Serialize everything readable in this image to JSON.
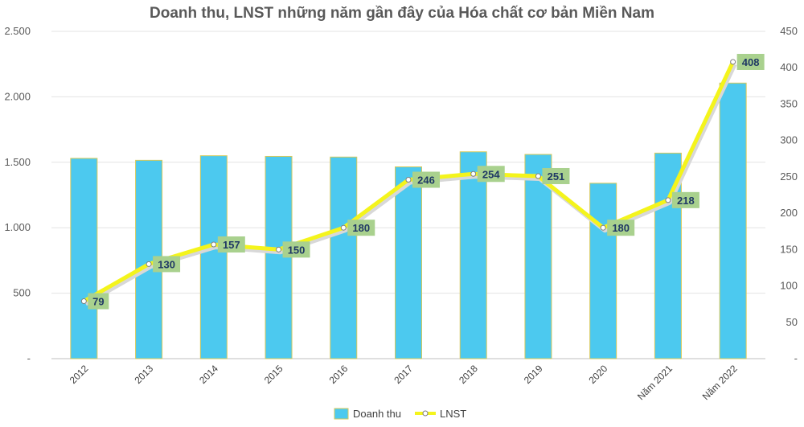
{
  "chart_data": {
    "type": "bar",
    "title": "Doanh thu, LNST những năm gần đây của Hóa chất cơ bản Miền Nam",
    "categories": [
      "2012",
      "2013",
      "2014",
      "2015",
      "2016",
      "2017",
      "2018",
      "2019",
      "2020",
      "Năm 2021",
      "Năm 2022"
    ],
    "series": [
      {
        "name": "Doanh thu",
        "type": "bar",
        "axis": "left",
        "values": [
          1530,
          1515,
          1550,
          1545,
          1540,
          1465,
          1580,
          1560,
          1340,
          1570,
          2105
        ]
      },
      {
        "name": "LNST",
        "type": "line",
        "axis": "right",
        "values": [
          79,
          130,
          157,
          150,
          180,
          246,
          254,
          251,
          180,
          218,
          408
        ],
        "data_labels": [
          "79",
          "130",
          "157",
          "150",
          "180",
          "246",
          "254",
          "251",
          "180",
          "218",
          "408"
        ]
      }
    ],
    "left_axis": {
      "ylim": [
        0,
        2500
      ],
      "ticks": [
        0,
        500,
        1000,
        1500,
        2000,
        2500
      ],
      "tick_labels": [
        "-",
        "500",
        "1.000",
        "1.500",
        "2.000",
        "2.500"
      ]
    },
    "right_axis": {
      "ylim": [
        0,
        450
      ],
      "ticks": [
        0,
        50,
        100,
        150,
        200,
        250,
        300,
        350,
        400,
        450
      ],
      "tick_labels": [
        "-",
        "50",
        "100",
        "150",
        "200",
        "250",
        "300",
        "350",
        "400",
        "450"
      ]
    },
    "grid": true,
    "legend": {
      "position": "bottom",
      "entries": [
        "Doanh thu",
        "LNST"
      ]
    },
    "colors": {
      "bar": "#4cc9ef",
      "bar_edge": "#d6c95a",
      "line": "#f4f41c",
      "line_shadow": "#d8d8d8",
      "label_box": "#a9d18e",
      "grid": "#e3e3e3"
    }
  }
}
